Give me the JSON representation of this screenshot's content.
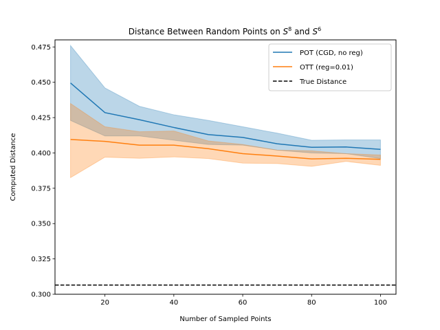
{
  "chart_data": {
    "type": "line",
    "title_main": "Distance Between Random Points on ",
    "title_s1_base": "S",
    "title_s1_exp": "8",
    "title_and": " and ",
    "title_s2_base": "S",
    "title_s2_exp": "6",
    "xlabel": "Number of Sampled Points",
    "ylabel": "Computed Distance",
    "xlim": [
      5.5,
      104.5
    ],
    "ylim": [
      0.3,
      0.48
    ],
    "x_ticks": [
      20,
      40,
      60,
      80,
      100
    ],
    "x_tick_labels": [
      "20",
      "40",
      "60",
      "80",
      "100"
    ],
    "y_ticks": [
      0.3,
      0.325,
      0.35,
      0.375,
      0.4,
      0.425,
      0.45,
      0.475
    ],
    "y_tick_labels": [
      "0.300",
      "0.325",
      "0.350",
      "0.375",
      "0.400",
      "0.425",
      "0.450",
      "0.475"
    ],
    "grid": false,
    "legend_position": "top-right",
    "x": [
      10,
      20,
      30,
      40,
      50,
      60,
      70,
      80,
      90,
      100
    ],
    "series": [
      {
        "name": "POT (CGD, no reg)",
        "color": "#1f77b4",
        "values": [
          0.4495,
          0.4285,
          0.4235,
          0.418,
          0.413,
          0.411,
          0.4065,
          0.404,
          0.4042,
          0.4025
        ],
        "upper": [
          0.476,
          0.446,
          0.433,
          0.427,
          0.423,
          0.4185,
          0.414,
          0.409,
          0.4092,
          0.4092
        ],
        "lower": [
          0.423,
          0.412,
          0.412,
          0.409,
          0.406,
          0.4055,
          0.402,
          0.4,
          0.3995,
          0.396
        ]
      },
      {
        "name": "OTT (reg=0.01)",
        "color": "#ff7f0e",
        "values": [
          0.4095,
          0.4082,
          0.4055,
          0.4055,
          0.403,
          0.3995,
          0.3978,
          0.3958,
          0.3962,
          0.3955
        ],
        "upper": [
          0.435,
          0.4185,
          0.415,
          0.4155,
          0.4085,
          0.406,
          0.402,
          0.4015,
          0.3995,
          0.3985
        ],
        "lower": [
          0.3825,
          0.397,
          0.3962,
          0.3972,
          0.396,
          0.3928,
          0.3925,
          0.3905,
          0.394,
          0.3912
        ]
      }
    ],
    "reference_line": {
      "name": "True Distance",
      "value": 0.3065,
      "color": "#000000",
      "style": "dashed"
    }
  }
}
